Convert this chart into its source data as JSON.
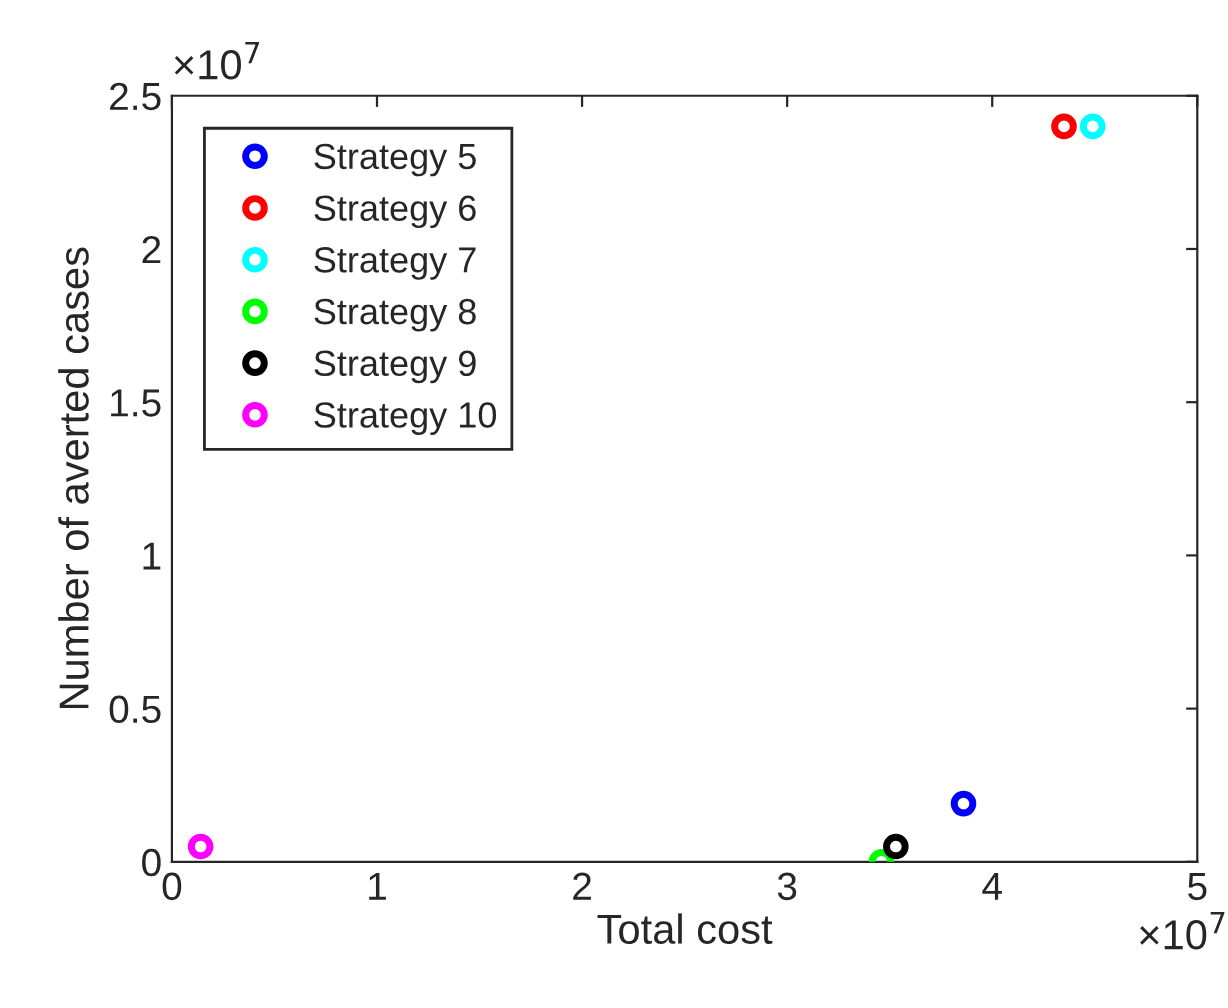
{
  "chart_data": {
    "type": "scatter",
    "xlabel": "Total cost",
    "ylabel": "Number of averted cases",
    "series": [
      {
        "name": "Strategy 5",
        "color": "#0000ff",
        "x": [
          3.86
        ],
        "values": [
          0.19
        ]
      },
      {
        "name": "Strategy 6",
        "color": "#ff0000",
        "x": [
          4.35
        ],
        "values": [
          2.4
        ]
      },
      {
        "name": "Strategy 7",
        "color": "#00ffff",
        "x": [
          4.49
        ],
        "values": [
          2.4
        ]
      },
      {
        "name": "Strategy 8",
        "color": "#00ff00",
        "x": [
          3.46
        ],
        "values": [
          0
        ]
      },
      {
        "name": "Strategy 9",
        "color": "#000000",
        "x": [
          3.53
        ],
        "values": [
          0.05
        ]
      },
      {
        "name": "Strategy 10",
        "color": "#ff00ff",
        "x": [
          0.14
        ],
        "values": [
          0.05
        ]
      }
    ],
    "xlim": [
      0,
      5
    ],
    "ylim": [
      0,
      2.5
    ],
    "xticks": [
      0,
      1,
      2,
      3,
      4,
      5
    ],
    "yticks": [
      0,
      0.5,
      1,
      1.5,
      2,
      2.5
    ],
    "annotations": [
      "×10$^{7}$",
      "×10$^{7}$"
    ],
    "marker": "circle",
    "legend": "top left",
    "grid": false
  }
}
